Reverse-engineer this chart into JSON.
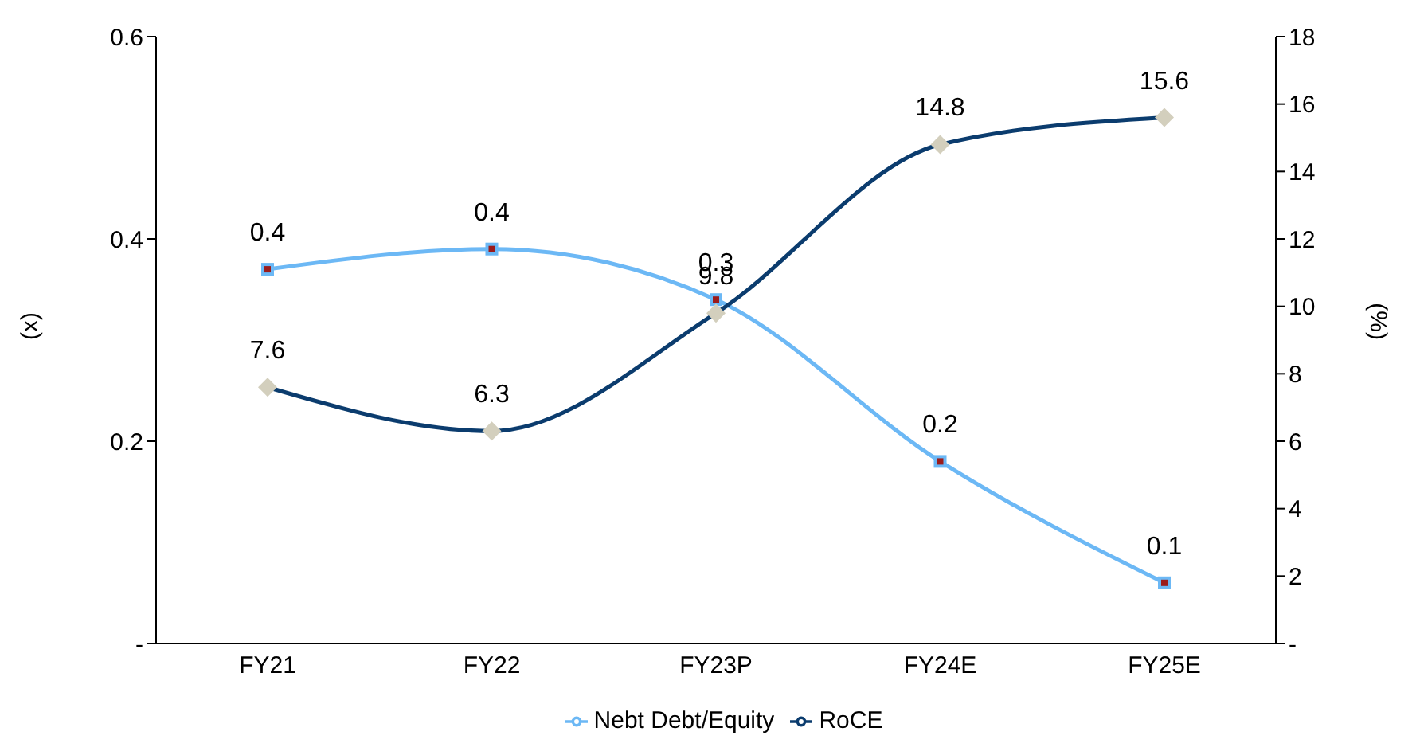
{
  "chart_data": {
    "type": "line",
    "categories": [
      "FY21",
      "FY22",
      "FY23P",
      "FY24E",
      "FY25E"
    ],
    "ylabel": "(x)",
    "y2label": "(%)",
    "ylim": [
      0,
      0.6
    ],
    "yticks": [
      {
        "value": 0,
        "label": "-"
      },
      0.2,
      0.4,
      0.6
    ],
    "y2lim": [
      0,
      18
    ],
    "y2ticks": [
      {
        "value": 0,
        "label": "-"
      },
      2,
      4,
      6,
      8,
      10,
      12,
      14,
      16,
      18
    ],
    "grid": false,
    "legend": "bottom",
    "line_style": "solid",
    "series": [
      {
        "name": "Nebt Debt/Equity",
        "color": "#6cb8f5",
        "marker": "square",
        "values": [
          0.37,
          0.39,
          0.34,
          0.18,
          0.06
        ],
        "value_labels": [
          "0.4",
          "0.4",
          "0.3",
          "0.2",
          "0.1"
        ]
      },
      {
        "name": "RoCE",
        "color": "#0b3c6e",
        "marker": "diamond",
        "axis": "y2",
        "values": [
          7.6,
          6.3,
          9.8,
          14.8,
          15.6
        ],
        "value_labels": [
          "7.6",
          "6.3",
          "9.8",
          "14.8",
          "15.6"
        ]
      }
    ]
  }
}
